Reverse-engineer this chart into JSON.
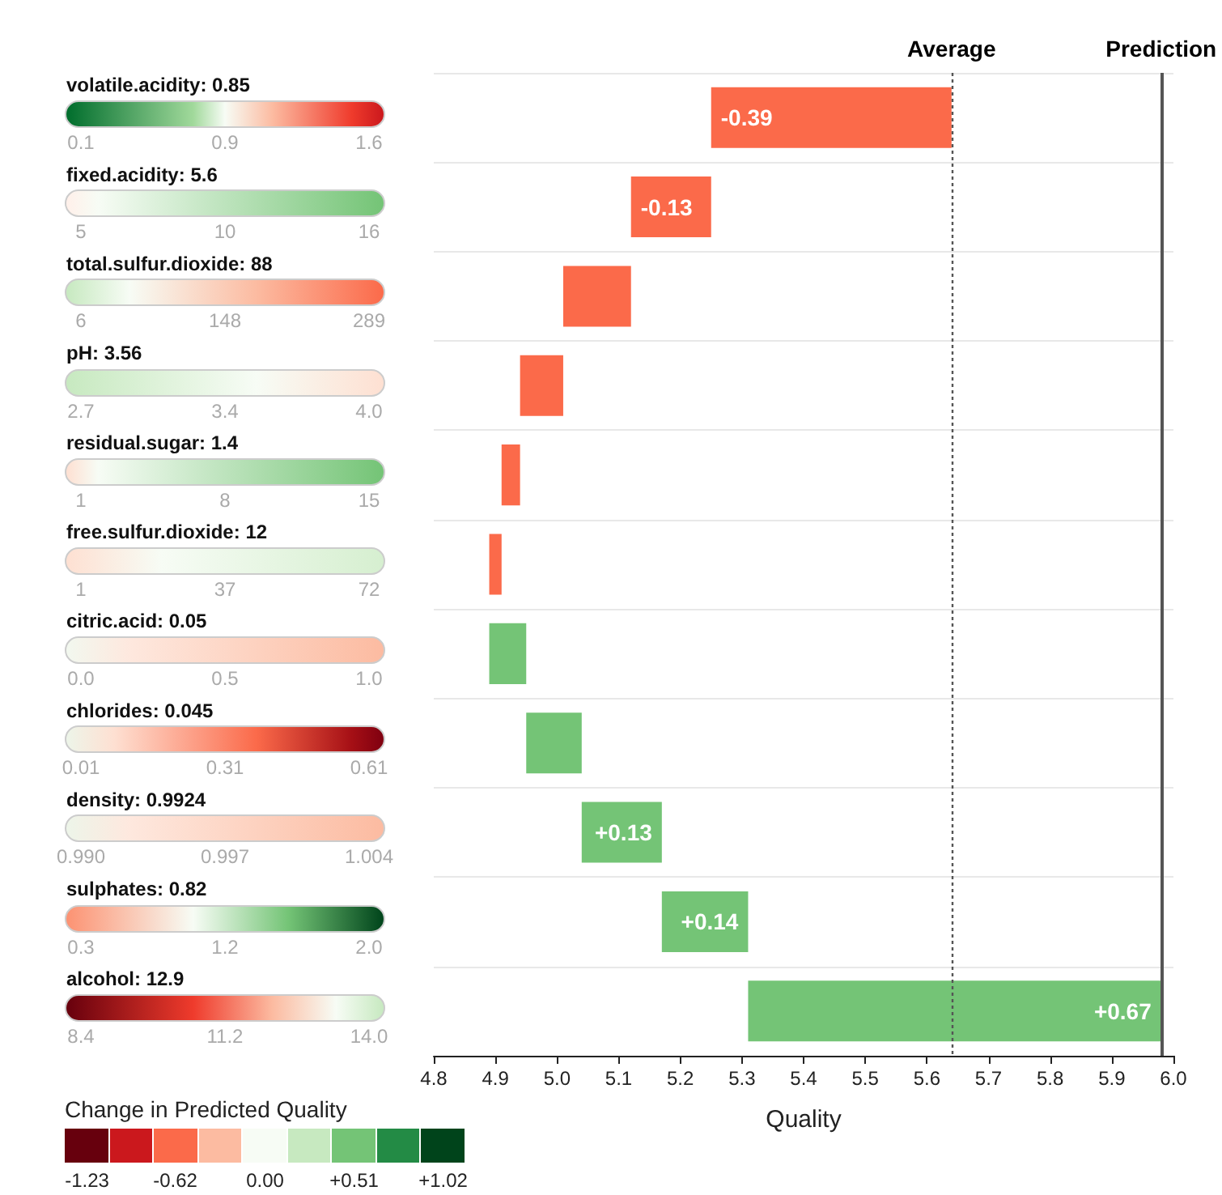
{
  "chart_data": [
    {
      "type": "bar",
      "orientation": "horizontal",
      "xlabel": "Quality",
      "categories": [
        "volatile.acidity: 0.85",
        "fixed.acidity: 5.6",
        "total.sulfur.dioxide: 88",
        "pH: 3.56",
        "residual.sugar: 1.4",
        "free.sulfur.dioxide: 12",
        "citric.acid: 0.05",
        "chlorides: 0.045",
        "density: 0.9924",
        "sulphates: 0.82",
        "alcohol: 12.9"
      ],
      "base": [
        5.64,
        5.25,
        5.12,
        5.01,
        4.94,
        4.91,
        4.89,
        4.95,
        5.04,
        5.17,
        5.31
      ],
      "values": [
        -0.39,
        -0.13,
        -0.11,
        -0.07,
        -0.03,
        -0.02,
        0.06,
        0.09,
        0.13,
        0.14,
        0.67
      ],
      "colors": [
        "#fb6a4a",
        "#fb6a4a",
        "#fb6a4a",
        "#fb6a4a",
        "#fb6a4a",
        "#fb6a4a",
        "#74c476",
        "#74c476",
        "#74c476",
        "#74c476",
        "#74c476"
      ],
      "value_labels": [
        "-0.39",
        "-0.13",
        null,
        null,
        null,
        null,
        null,
        null,
        "+0.13",
        "+0.14",
        "+0.67"
      ],
      "xlim": [
        4.8,
        6.0
      ],
      "xticks": [
        4.8,
        4.9,
        {
          "value": 5,
          "label": "5.0"
        },
        5.1,
        5.2,
        5.3,
        5.4,
        5.5,
        5.6,
        5.7,
        5.8,
        5.9,
        {
          "value": 6,
          "label": "6.0"
        }
      ],
      "ref_lines": [
        {
          "axis": "x",
          "value": 5.64,
          "label": "Average",
          "line_style": "dotted",
          "color": "#555555"
        },
        {
          "axis": "x",
          "value": 5.98,
          "label": "Prediction",
          "line_style": "solid",
          "color": "#555555"
        }
      ],
      "grid": "y",
      "clabel": "Change in Predicted Quality",
      "cticks": [
        -1.23,
        -0.62,
        {
          "value": 0,
          "label": "0.00"
        },
        {
          "value": 0.51,
          "label": "+0.51"
        },
        {
          "value": 1.02,
          "label": "+1.02"
        }
      ]
    },
    {
      "type": "other",
      "annotations": [
        "0.1",
        "0.9",
        "1.6",
        "5",
        "10",
        "16",
        "6",
        "148",
        "289",
        "2.7",
        "3.4",
        "4.0",
        "1",
        "8",
        "15",
        "1",
        "37",
        "72",
        "0.0",
        "0.5",
        "1.0",
        "0.01",
        "0.31",
        "0.61",
        "0.990",
        "0.997",
        "1.004",
        "0.3",
        "1.2",
        "2.0",
        "8.4",
        "11.2",
        "14.0"
      ]
    }
  ]
}
